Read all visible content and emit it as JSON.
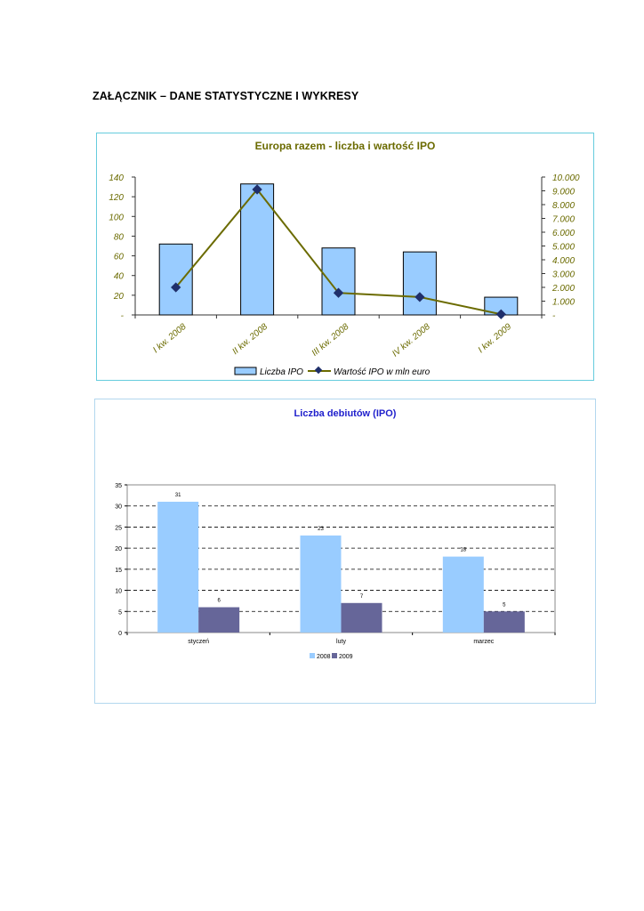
{
  "page": {
    "heading": "ZAŁĄCZNIK – DANE STATYSTYCZNE I WYKRESY"
  },
  "colors": {
    "bar_fill": "#99ccff",
    "line": "#6b6b00",
    "marker": "#1f2f6b",
    "title1": "#6b6b00",
    "title2": "#1f1fcc",
    "bar2008": "#99ccff",
    "bar2009": "#666699"
  },
  "chart_data": [
    {
      "type": "bar",
      "title": "Europa razem - liczba i wartość IPO",
      "categories": [
        "I kw. 2008",
        "II kw. 2008",
        "III kw. 2008",
        "IV kw. 2008",
        "I kw. 2009"
      ],
      "series": [
        {
          "name": "Liczba IPO",
          "type": "bar",
          "axis": "left",
          "values": [
            72,
            133,
            68,
            64,
            18
          ]
        },
        {
          "name": "Wartość IPO w mln euro",
          "type": "line",
          "axis": "right",
          "values": [
            2000,
            9100,
            1600,
            1300,
            50
          ]
        }
      ],
      "ylim": [
        0,
        140
      ],
      "y2lim": [
        0,
        10000
      ],
      "yticks": [
        "-",
        "20",
        "40",
        "60",
        "80",
        "100",
        "120",
        "140"
      ],
      "y2ticks": [
        "-",
        "1.000",
        "2.000",
        "3.000",
        "4.000",
        "5.000",
        "6.000",
        "7.000",
        "8.000",
        "9.000",
        "10.000"
      ],
      "legend": "bottom",
      "grid": false
    },
    {
      "type": "bar",
      "title": "Liczba debiutów (IPO)",
      "categories": [
        "styczeń",
        "luty",
        "marzec"
      ],
      "series": [
        {
          "name": "2008",
          "values": [
            31,
            23,
            18
          ]
        },
        {
          "name": "2009",
          "values": [
            6,
            7,
            5
          ]
        }
      ],
      "ylim": [
        0,
        35
      ],
      "yticks": [
        "0",
        "5",
        "10",
        "15",
        "20",
        "25",
        "30",
        "35"
      ],
      "legend": "bottom",
      "grid": true
    }
  ]
}
